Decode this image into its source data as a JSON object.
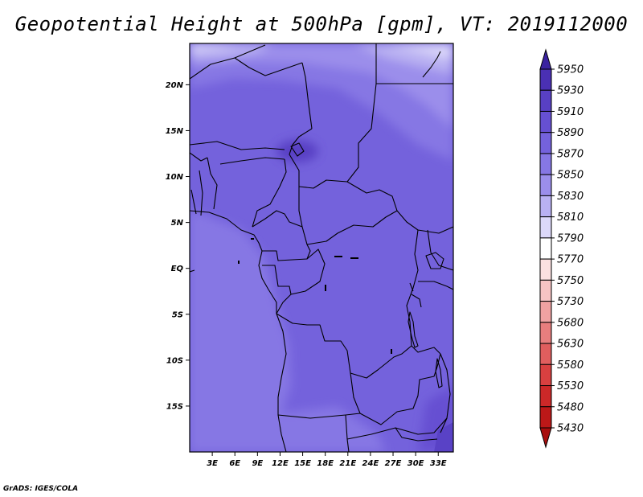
{
  "title": "Geopotential Height at 500hPa [gpm], VT: 2019112000",
  "credit": "GrADS: IGES/COLA",
  "map": {
    "lon_range": [
      0,
      35
    ],
    "lat_range": [
      -20,
      24.5
    ],
    "lat_ticks": [
      {
        "value": 20,
        "label": "20N"
      },
      {
        "value": 15,
        "label": "15N"
      },
      {
        "value": 10,
        "label": "10N"
      },
      {
        "value": 5,
        "label": "5N"
      },
      {
        "value": 0,
        "label": "EQ"
      },
      {
        "value": -5,
        "label": "5S"
      },
      {
        "value": -10,
        "label": "10S"
      },
      {
        "value": -15,
        "label": "15S"
      }
    ],
    "lon_ticks": [
      {
        "value": 3,
        "label": "3E"
      },
      {
        "value": 6,
        "label": "6E"
      },
      {
        "value": 9,
        "label": "9E"
      },
      {
        "value": 12,
        "label": "12E"
      },
      {
        "value": 15,
        "label": "15E"
      },
      {
        "value": 18,
        "label": "18E"
      },
      {
        "value": 21,
        "label": "21E"
      },
      {
        "value": 24,
        "label": "24E"
      },
      {
        "value": 27,
        "label": "27E"
      },
      {
        "value": 30,
        "label": "30E"
      },
      {
        "value": 33,
        "label": "33E"
      }
    ]
  },
  "colorbar": {
    "levels": [
      "5950",
      "5930",
      "5910",
      "5890",
      "5870",
      "5850",
      "5830",
      "5810",
      "5790",
      "5770",
      "5750",
      "5730",
      "5680",
      "5630",
      "5580",
      "5530",
      "5480",
      "5430"
    ],
    "colors": [
      "#3a22a0",
      "#4a30b4",
      "#5840c4",
      "#6650d2",
      "#7462dc",
      "#8677e4",
      "#9b8eeb",
      "#b9b1f2",
      "#dcd8f9",
      "#ffffff",
      "#fbe1e1",
      "#f7c4c4",
      "#f0a2a2",
      "#e87e7e",
      "#e05e5e",
      "#d84040",
      "#cc2828",
      "#bc1818",
      "#a80e0e"
    ]
  }
}
